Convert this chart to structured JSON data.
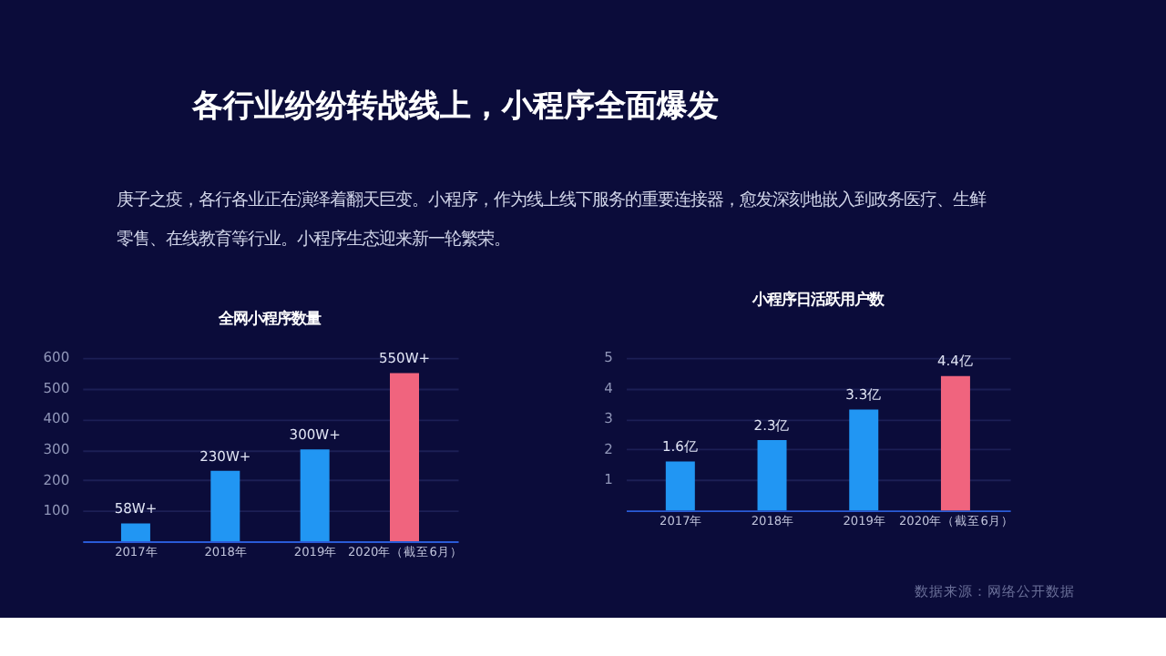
{
  "chart_data": [
    {
      "type": "bar",
      "title": "全网小程序数量",
      "annotations": [
        "各行业纷纷转战线上，小程序全面爆发",
        "庚子之疫，各行各业正在演绎着翻天巨变。小程序，作为线上线下服务的重要连接器，愈发深刻地嵌入到政务医疗、生鲜零售、在线教育等行业。小程序生态迎来新一轮繁荣。"
      ],
      "categories": [
        "2017年",
        "2018年",
        "2019年",
        "2020年（截至6月）"
      ],
      "values": [
        58,
        230,
        300,
        550
      ],
      "value_labels": [
        "58W+",
        "230W+",
        "300W+",
        "550W+"
      ],
      "colors": [
        "#2196f3",
        "#2196f3",
        "#2196f3",
        "#f0647e"
      ],
      "ylim": [
        0,
        600
      ],
      "yticks": [
        100,
        200,
        300,
        400,
        500,
        600
      ],
      "grid": "y"
    },
    {
      "type": "bar",
      "title": "小程序日活跃用户数",
      "annotations": [
        "数据来源：网络公开数据"
      ],
      "categories": [
        "2017年",
        "2018年",
        "2019年",
        "2020年（截至6月）"
      ],
      "values": [
        1.6,
        2.3,
        3.3,
        4.4
      ],
      "value_labels": [
        "1.6亿",
        "2.3亿",
        "3.3亿",
        "4.4亿"
      ],
      "colors": [
        "#2196f3",
        "#2196f3",
        "#2196f3",
        "#f0647e"
      ],
      "ylim": [
        0,
        5
      ],
      "yticks": [
        1,
        2,
        3,
        4,
        5
      ],
      "grid": "y"
    }
  ]
}
